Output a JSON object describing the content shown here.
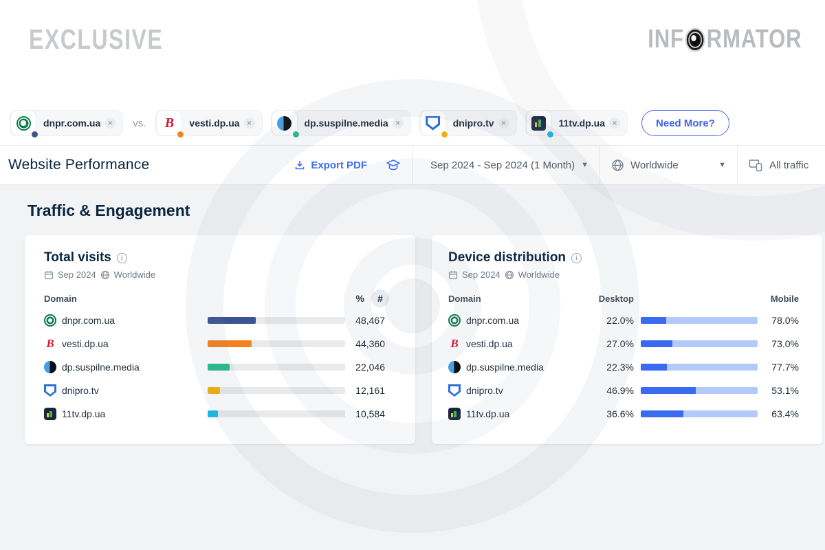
{
  "header": {
    "exclusive": "EXCLUSIVE",
    "informator_prefix": "INF",
    "informator_suffix": "RMATOR"
  },
  "comparison_bar": {
    "vs_label": "vs.",
    "need_more_label": "Need More?",
    "chips": [
      {
        "domain": "dnpr.com.ua",
        "icon": "dnpr",
        "dot_color": "#3d5493"
      },
      {
        "domain": "vesti.dp.ua",
        "icon": "vesti",
        "dot_color": "#f5821f"
      },
      {
        "domain": "dp.suspilne.media",
        "icon": "suspilne",
        "dot_color": "#22bd8b"
      },
      {
        "domain": "dnipro.tv",
        "icon": "dnipro",
        "dot_color": "#f3b00c"
      },
      {
        "domain": "11tv.dp.ua",
        "icon": "tv11",
        "dot_color": "#16b9e4"
      }
    ]
  },
  "toolbar": {
    "title": "Website Performance",
    "export_pdf_label": "Export PDF",
    "date_range_label": "Sep 2024 - Sep 2024 (1 Month)",
    "region_label": "Worldwide",
    "traffic_label": "All traffic"
  },
  "section_title": "Traffic & Engagement",
  "colors": {
    "accent_blue": "#3e6ef3",
    "desktop_blue": "#3a6af0",
    "mobile_blue": "#b3c9f8",
    "bar_track": "#e8eaec"
  },
  "chart_data": [
    {
      "type": "bar",
      "title": "Total visits",
      "date": "Sep 2024",
      "region": "Worldwide",
      "columns": {
        "domain": "Domain",
        "percent_toggle": "%",
        "number_toggle": "#"
      },
      "categories": [
        "dnpr.com.ua",
        "vesti.dp.ua",
        "dp.suspilne.media",
        "dnipro.tv",
        "11tv.dp.ua"
      ],
      "icons": [
        "dnpr",
        "vesti",
        "suspilne",
        "dnipro",
        "tv11"
      ],
      "values": [
        48467,
        44360,
        22046,
        12161,
        10584
      ],
      "value_labels": [
        "48,467",
        "44,360",
        "22,046",
        "12,161",
        "10,584"
      ],
      "bar_colors": [
        "#3d5493",
        "#f5821f",
        "#22bd8b",
        "#f3b00c",
        "#16b9e4"
      ],
      "bar_pct_of_total": [
        35.2,
        32.2,
        16.0,
        8.8,
        7.7
      ],
      "selected_mode": "#"
    },
    {
      "type": "bar",
      "title": "Device distribution",
      "date": "Sep 2024",
      "region": "Worldwide",
      "columns": {
        "domain": "Domain",
        "desktop": "Desktop",
        "mobile": "Mobile"
      },
      "categories": [
        "dnpr.com.ua",
        "vesti.dp.ua",
        "dp.suspilne.media",
        "dnipro.tv",
        "11tv.dp.ua"
      ],
      "icons": [
        "dnpr",
        "vesti",
        "suspilne",
        "dnipro",
        "tv11"
      ],
      "series": [
        {
          "name": "Desktop",
          "values": [
            22.0,
            27.0,
            22.3,
            46.9,
            36.6
          ]
        },
        {
          "name": "Mobile",
          "values": [
            78.0,
            73.0,
            77.7,
            53.1,
            63.4
          ]
        }
      ],
      "desktop_labels": [
        "22.0%",
        "27.0%",
        "22.3%",
        "46.9%",
        "36.6%"
      ],
      "mobile_labels": [
        "78.0%",
        "73.0%",
        "77.7%",
        "53.1%",
        "63.4%"
      ]
    }
  ]
}
